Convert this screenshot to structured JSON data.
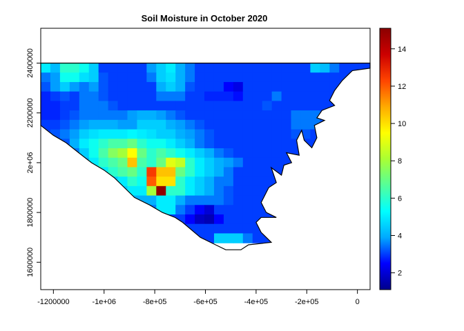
{
  "chart_data": {
    "type": "heatmap",
    "title": "Soil Moisture in October 2020",
    "xlabel": "",
    "ylabel": "",
    "xlim": [
      -1250000,
      50000
    ],
    "ylim": [
      1490000,
      2540000
    ],
    "x_ticks": [
      {
        "value": -1200000,
        "label": "-1200000"
      },
      {
        "value": -1000000,
        "label": "-1e+06"
      },
      {
        "value": -800000,
        "label": "-8e+05"
      },
      {
        "value": -600000,
        "label": "-6e+05"
      },
      {
        "value": -400000,
        "label": "-4e+05"
      },
      {
        "value": -200000,
        "label": "-2e+05"
      },
      {
        "value": 0,
        "label": "0"
      }
    ],
    "y_ticks": [
      {
        "value": 1600000,
        "label": "1600000"
      },
      {
        "value": 1800000,
        "label": "1800000"
      },
      {
        "value": 2000000,
        "label": "2e+06"
      },
      {
        "value": 2200000,
        "label": "2200000"
      },
      {
        "value": 2400000,
        "label": "2400000"
      }
    ],
    "grid": false,
    "legend": {
      "type": "colorbar",
      "position": "right",
      "range": [
        1.1,
        15.1
      ],
      "ticks": [
        2,
        4,
        6,
        8,
        10,
        12,
        14
      ],
      "colormap": [
        "#00008b",
        "#0000ff",
        "#00aaff",
        "#00ffff",
        "#55ff99",
        "#aaff33",
        "#ffff00",
        "#ffaa00",
        "#ff4400",
        "#cc0000",
        "#8b0000"
      ]
    },
    "cell_size_data_units": 38000,
    "grid_origin": {
      "x": -1250000,
      "y": 2400000
    },
    "cells": [
      {
        "row": 0,
        "values": [
          5.0,
          4.2,
          6.0,
          6.0,
          5.5,
          4.5,
          3.0,
          3.0,
          3.0,
          3.0,
          3.0,
          3.8,
          4.5,
          5.0,
          4.0,
          3.5,
          3.0,
          3.0,
          3.0,
          3.0,
          3.0,
          3.0,
          3.0,
          3.0,
          3.0,
          3.0,
          3.0,
          3.0,
          4.5,
          4.2,
          3.5,
          3.0,
          3.0,
          3.0,
          3.0
        ]
      },
      {
        "row": 1,
        "values": [
          3.5,
          3.8,
          5.5,
          5.5,
          4.8,
          4.5,
          3.2,
          3.0,
          3.0,
          3.0,
          3.0,
          3.5,
          4.5,
          4.8,
          4.0,
          3.5,
          3.0,
          3.0,
          3.0,
          3.0,
          3.0,
          3.0,
          3.0,
          3.0,
          3.0,
          3.0,
          3.0,
          3.0,
          3.0,
          3.0,
          3.0,
          3.0,
          3.0,
          3.0,
          3.0
        ]
      },
      {
        "row": 2,
        "values": [
          3.2,
          3.8,
          4.5,
          3.8,
          3.5,
          3.8,
          3.2,
          3.0,
          3.0,
          3.0,
          3.0,
          3.0,
          4.0,
          4.5,
          4.0,
          3.2,
          3.0,
          3.0,
          3.0,
          2.5,
          2.2,
          3.0,
          3.0,
          3.0,
          3.0,
          3.0,
          3.0,
          3.0,
          3.0,
          3.0,
          3.0,
          3.0,
          3.0,
          3.0,
          3.0
        ]
      },
      {
        "row": 3,
        "values": [
          2.8,
          3.0,
          3.2,
          3.0,
          3.5,
          3.5,
          3.2,
          3.0,
          3.0,
          3.0,
          3.0,
          3.0,
          3.5,
          3.5,
          3.5,
          3.0,
          3.0,
          2.8,
          2.8,
          2.8,
          2.6,
          3.0,
          3.0,
          3.0,
          3.5,
          3.0,
          3.0,
          3.0,
          3.0,
          3.0,
          3.0,
          3.0,
          3.0,
          3.0,
          3.0
        ]
      },
      {
        "row": 4,
        "values": [
          2.8,
          2.8,
          3.0,
          3.0,
          3.5,
          3.5,
          3.5,
          3.2,
          3.0,
          3.0,
          3.0,
          3.0,
          3.0,
          3.0,
          3.0,
          3.0,
          3.0,
          3.0,
          3.0,
          3.0,
          3.0,
          3.0,
          3.0,
          3.2,
          3.0,
          3.0,
          3.0,
          3.0,
          3.0,
          3.0,
          3.0,
          3.0,
          3.0,
          3.0,
          3.0
        ]
      },
      {
        "row": 5,
        "values": [
          2.8,
          2.8,
          3.0,
          3.2,
          3.5,
          3.5,
          3.5,
          3.5,
          3.5,
          3.8,
          4.0,
          4.0,
          3.8,
          3.5,
          3.2,
          3.0,
          3.0,
          3.0,
          3.0,
          3.0,
          3.0,
          3.0,
          3.0,
          3.0,
          3.0,
          3.0,
          3.5,
          3.5,
          3.5,
          3.2,
          3.2,
          3.0,
          3.0,
          3.0,
          3.0
        ]
      },
      {
        "row": 6,
        "values": [
          3.0,
          3.0,
          3.2,
          3.5,
          3.8,
          4.0,
          4.0,
          4.0,
          3.8,
          3.8,
          4.5,
          4.5,
          4.5,
          4.0,
          3.8,
          3.5,
          3.2,
          3.0,
          3.0,
          3.0,
          3.0,
          3.0,
          3.0,
          3.0,
          3.0,
          3.0,
          3.5,
          3.5,
          3.5,
          3.2,
          3.2,
          3.0,
          3.0,
          3.0,
          3.0
        ]
      },
      {
        "row": 7,
        "values": [
          3.0,
          3.2,
          3.5,
          3.8,
          4.5,
          4.8,
          5.0,
          5.0,
          5.0,
          5.2,
          5.0,
          4.8,
          4.5,
          4.5,
          4.0,
          3.8,
          3.5,
          3.2,
          3.0,
          3.0,
          3.0,
          3.0,
          3.0,
          3.0,
          3.0,
          3.0,
          3.2,
          3.2,
          3.0,
          3.0,
          3.0,
          3.0,
          3.0,
          3.0,
          3.0
        ]
      },
      {
        "row": 8,
        "values": [
          3.0,
          3.0,
          3.2,
          4.0,
          5.0,
          5.5,
          6.0,
          6.5,
          6.5,
          7.0,
          6.0,
          5.5,
          5.5,
          5.0,
          4.5,
          4.0,
          3.5,
          3.2,
          3.0,
          3.0,
          3.0,
          3.0,
          3.0,
          3.0,
          3.0,
          3.0,
          3.0,
          3.0,
          3.0,
          3.0,
          3.0,
          3.0,
          3.0,
          3.0,
          3.0
        ]
      },
      {
        "row": 9,
        "values": [
          3.0,
          3.0,
          3.0,
          3.5,
          4.5,
          5.5,
          6.5,
          7.5,
          8.0,
          9.5,
          7.0,
          6.0,
          6.5,
          6.0,
          5.5,
          5.0,
          4.5,
          4.0,
          3.5,
          3.2,
          3.0,
          3.0,
          3.0,
          3.0,
          3.0,
          3.0,
          3.0,
          3.0,
          3.0,
          3.0,
          3.0,
          3.0,
          3.0,
          3.0,
          3.0
        ]
      },
      {
        "row": 10,
        "values": [
          3.0,
          3.0,
          3.0,
          3.0,
          4.0,
          5.0,
          6.0,
          6.5,
          7.0,
          10.5,
          6.5,
          6.0,
          7.0,
          9.0,
          8.5,
          6.0,
          5.0,
          4.5,
          4.0,
          3.8,
          3.5,
          3.0,
          3.0,
          3.0,
          3.0,
          3.0,
          3.0,
          3.0,
          3.0,
          3.0,
          3.0,
          3.0,
          3.0,
          3.0,
          3.0
        ]
      },
      {
        "row": 11,
        "values": [
          3.0,
          3.0,
          3.0,
          3.0,
          3.5,
          4.0,
          5.0,
          6.0,
          6.5,
          7.0,
          6.0,
          12.5,
          10.5,
          10.5,
          7.0,
          6.0,
          5.0,
          4.5,
          4.0,
          3.5,
          3.0,
          3.0,
          3.0,
          3.0,
          3.0,
          3.0,
          3.0,
          3.0,
          3.0,
          3.0,
          3.0,
          3.0,
          3.0,
          3.0,
          3.0
        ]
      },
      {
        "row": 12,
        "values": [
          3.0,
          3.0,
          3.0,
          3.0,
          3.0,
          3.5,
          4.0,
          4.5,
          5.0,
          6.0,
          5.5,
          12.0,
          10.0,
          10.0,
          6.0,
          5.0,
          4.5,
          4.0,
          3.5,
          3.5,
          3.0,
          3.0,
          3.0,
          3.0,
          3.0,
          3.0,
          3.0,
          3.0,
          3.0,
          3.0,
          3.0,
          3.0,
          3.0,
          3.0,
          3.0
        ]
      },
      {
        "row": 13,
        "values": [
          3.0,
          3.0,
          3.0,
          3.0,
          3.0,
          3.0,
          3.5,
          4.0,
          4.5,
          5.0,
          5.0,
          8.0,
          15.0,
          6.0,
          6.0,
          5.0,
          4.5,
          4.0,
          3.5,
          3.2,
          3.0,
          3.0,
          3.0,
          3.0,
          3.0,
          3.0,
          3.0,
          3.0,
          3.0,
          3.0,
          3.0,
          3.0,
          3.0,
          3.0,
          3.0
        ]
      },
      {
        "row": 14,
        "values": [
          3.0,
          3.0,
          3.0,
          3.0,
          3.0,
          3.0,
          3.0,
          3.5,
          3.5,
          4.0,
          4.0,
          4.0,
          5.0,
          5.0,
          4.0,
          3.5,
          3.5,
          3.5,
          3.5,
          3.2,
          3.0,
          3.0,
          3.0,
          3.0,
          3.0,
          3.0,
          3.0,
          3.0,
          3.0,
          3.0,
          3.0,
          3.0,
          3.0,
          3.0,
          3.0
        ]
      },
      {
        "row": 15,
        "values": [
          3.0,
          3.0,
          3.0,
          3.0,
          3.0,
          3.0,
          3.0,
          3.0,
          3.2,
          3.5,
          3.5,
          3.5,
          5.0,
          5.0,
          3.5,
          3.0,
          2.5,
          2.0,
          3.0,
          3.0,
          3.0,
          3.0,
          3.0,
          3.0,
          3.0,
          3.0,
          3.0,
          3.0,
          3.0,
          3.0,
          3.0,
          3.0,
          3.0,
          3.0,
          3.0
        ]
      },
      {
        "row": 16,
        "values": [
          3.0,
          3.0,
          3.0,
          3.0,
          3.0,
          3.0,
          3.0,
          3.0,
          3.0,
          3.0,
          3.0,
          3.0,
          3.0,
          3.0,
          3.0,
          2.5,
          1.8,
          1.6,
          2.5,
          3.0,
          3.0,
          3.0,
          3.0,
          3.0,
          3.0,
          3.0,
          3.0,
          3.0,
          3.0,
          3.0,
          3.0,
          3.0,
          3.0,
          3.0,
          3.0
        ]
      },
      {
        "row": 17,
        "values": [
          3.0,
          3.0,
          3.0,
          3.0,
          3.0,
          3.0,
          3.0,
          3.0,
          3.0,
          3.0,
          3.0,
          3.0,
          3.0,
          3.0,
          3.0,
          3.0,
          3.0,
          3.0,
          3.0,
          3.0,
          3.0,
          3.0,
          3.0,
          3.0,
          3.0,
          3.0,
          3.0,
          3.0,
          3.0,
          3.0,
          3.0,
          3.0,
          3.0,
          3.0,
          3.0
        ]
      },
      {
        "row": 18,
        "values": [
          3.0,
          3.0,
          3.0,
          3.0,
          3.0,
          3.0,
          3.0,
          3.0,
          3.0,
          3.0,
          3.0,
          3.0,
          3.0,
          3.0,
          3.0,
          3.0,
          3.0,
          3.0,
          4.5,
          4.5,
          4.5,
          3.5,
          3.0,
          3.0,
          3.0,
          3.0,
          3.0,
          3.0,
          3.0,
          3.0,
          3.0,
          3.0,
          3.0,
          3.0,
          3.0
        ]
      }
    ],
    "region_outline": [
      [
        -1250000,
        2400000
      ],
      [
        50000,
        2400000
      ],
      [
        50000,
        2380000
      ],
      [
        -20000,
        2370000
      ],
      [
        -60000,
        2330000
      ],
      [
        -90000,
        2290000
      ],
      [
        -110000,
        2250000
      ],
      [
        -90000,
        2230000
      ],
      [
        -140000,
        2210000
      ],
      [
        -160000,
        2180000
      ],
      [
        -130000,
        2170000
      ],
      [
        -170000,
        2150000
      ],
      [
        -160000,
        2100000
      ],
      [
        -180000,
        2060000
      ],
      [
        -210000,
        2090000
      ],
      [
        -220000,
        2130000
      ],
      [
        -240000,
        2090000
      ],
      [
        -230000,
        2030000
      ],
      [
        -280000,
        2040000
      ],
      [
        -260000,
        2000000
      ],
      [
        -290000,
        1990000
      ],
      [
        -300000,
        1950000
      ],
      [
        -340000,
        1980000
      ],
      [
        -320000,
        1920000
      ],
      [
        -350000,
        1900000
      ],
      [
        -380000,
        1840000
      ],
      [
        -360000,
        1800000
      ],
      [
        -320000,
        1780000
      ],
      [
        -380000,
        1780000
      ],
      [
        -400000,
        1760000
      ],
      [
        -380000,
        1720000
      ],
      [
        -340000,
        1680000
      ],
      [
        -430000,
        1670000
      ],
      [
        -460000,
        1650000
      ],
      [
        -520000,
        1650000
      ],
      [
        -560000,
        1670000
      ],
      [
        -620000,
        1700000
      ],
      [
        -690000,
        1760000
      ],
      [
        -720000,
        1780000
      ],
      [
        -770000,
        1800000
      ],
      [
        -820000,
        1830000
      ],
      [
        -880000,
        1860000
      ],
      [
        -920000,
        1900000
      ],
      [
        -960000,
        1940000
      ],
      [
        -1000000,
        1970000
      ],
      [
        -1050000,
        2000000
      ],
      [
        -1100000,
        2040000
      ],
      [
        -1150000,
        2080000
      ],
      [
        -1200000,
        2110000
      ],
      [
        -1250000,
        2150000
      ]
    ]
  }
}
